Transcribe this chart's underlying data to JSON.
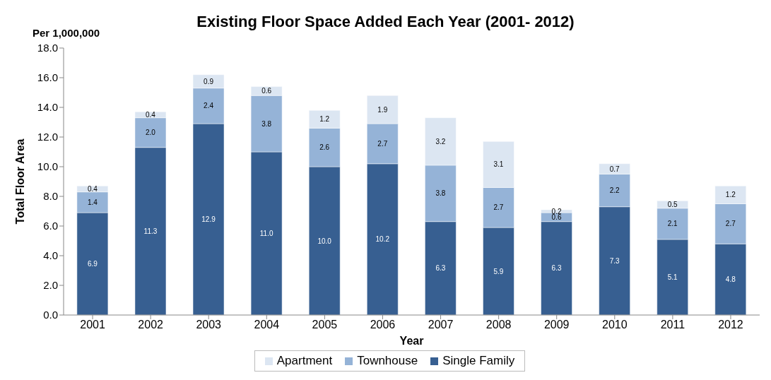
{
  "chart_data": {
    "type": "bar",
    "title": "Existing Floor Space Added Each Year (2001- 2012)",
    "xlabel": "Year",
    "ylabel": "Total Floor Area",
    "annotations": [
      "Per 1,000,000"
    ],
    "categories": [
      "2001",
      "2002",
      "2003",
      "2004",
      "2005",
      "2006",
      "2007",
      "2008",
      "2009",
      "2010",
      "2011",
      "2012"
    ],
    "stacked": true,
    "grid": false,
    "legend": "bottom",
    "ylim": [
      0,
      18
    ],
    "yticks": [
      {
        "value": 0,
        "label": "0.0"
      },
      {
        "value": 2,
        "label": "2.0"
      },
      {
        "value": 4,
        "label": "4.0"
      },
      {
        "value": 6,
        "label": "6.0"
      },
      {
        "value": 8,
        "label": "8.0"
      },
      {
        "value": 10,
        "label": "10.0"
      },
      {
        "value": 12,
        "label": "12.0"
      },
      {
        "value": 14,
        "label": "14.0"
      },
      {
        "value": 16,
        "label": "16.0"
      },
      {
        "value": 18,
        "label": "18.0"
      }
    ],
    "series": [
      {
        "name": "Single Family",
        "color": "#375f91",
        "values": [
          6.9,
          11.3,
          12.9,
          11.0,
          10.0,
          10.2,
          6.3,
          5.9,
          6.3,
          7.3,
          5.1,
          4.8
        ],
        "value_labels": [
          "6.9",
          "11.3",
          "12.9",
          "11.0",
          "10.0",
          "10.2",
          "6.3",
          "5.9",
          "6.3",
          "7.3",
          "5.1",
          "4.8"
        ]
      },
      {
        "name": "Townhouse",
        "color": "#95b3d7",
        "values": [
          1.4,
          2.0,
          2.4,
          3.8,
          2.6,
          2.7,
          3.8,
          2.7,
          0.6,
          2.2,
          2.1,
          2.7
        ],
        "value_labels": [
          "1.4",
          "2.0",
          "2.4",
          "3.8",
          "2.6",
          "2.7",
          "3.8",
          "2.7",
          "0.6",
          "2.2",
          "2.1",
          "2.7"
        ]
      },
      {
        "name": "Apartment",
        "color": "#dce6f2",
        "values": [
          0.4,
          0.4,
          0.9,
          0.6,
          1.2,
          1.9,
          3.2,
          3.1,
          0.2,
          0.7,
          0.5,
          1.2
        ],
        "value_labels": [
          "0.4",
          "0.4",
          "0.9",
          "0.6",
          "1.2",
          "1.9",
          "3.2",
          "3.1",
          "0.2",
          "0.7",
          "0.5",
          "1.2"
        ]
      }
    ]
  }
}
